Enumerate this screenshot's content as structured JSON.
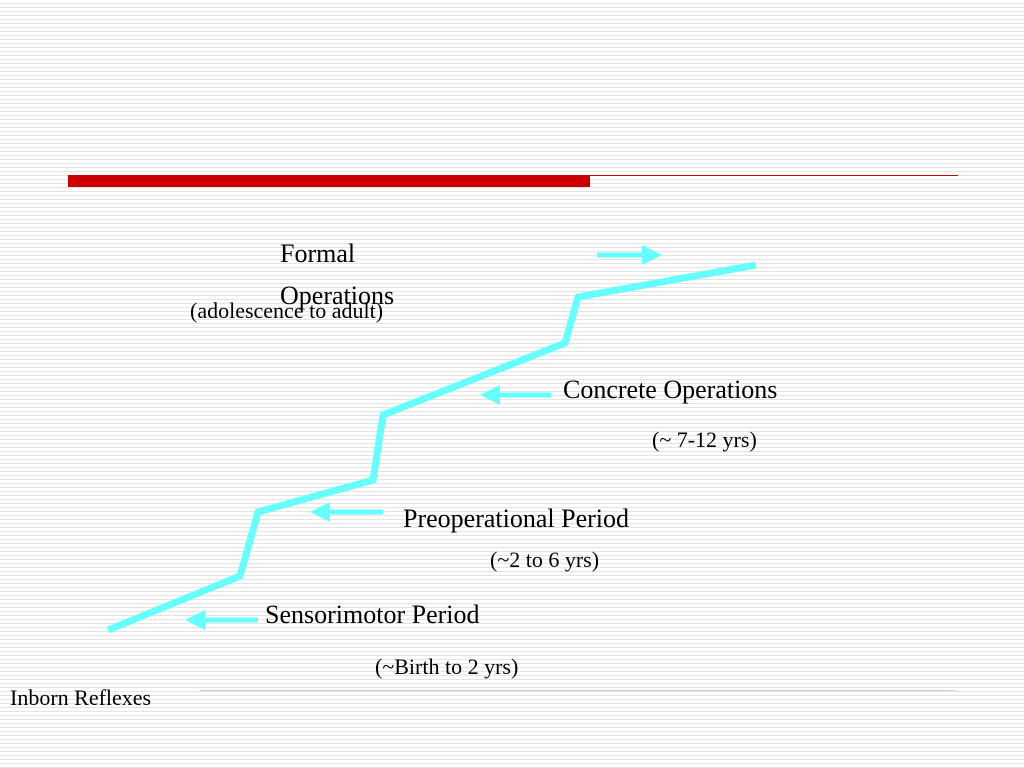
{
  "stages": [
    {
      "label": "Formal Operations",
      "age": "(adolescence to adult)"
    },
    {
      "label": "Concrete Operations",
      "age": "(~ 7-12 yrs)"
    },
    {
      "label": "Preoperational Period",
      "age": "(~2 to 6 yrs)"
    },
    {
      "label": "Sensorimotor Period",
      "age": "(~Birth to 2 yrs)"
    }
  ],
  "start": "Inborn Reflexes"
}
